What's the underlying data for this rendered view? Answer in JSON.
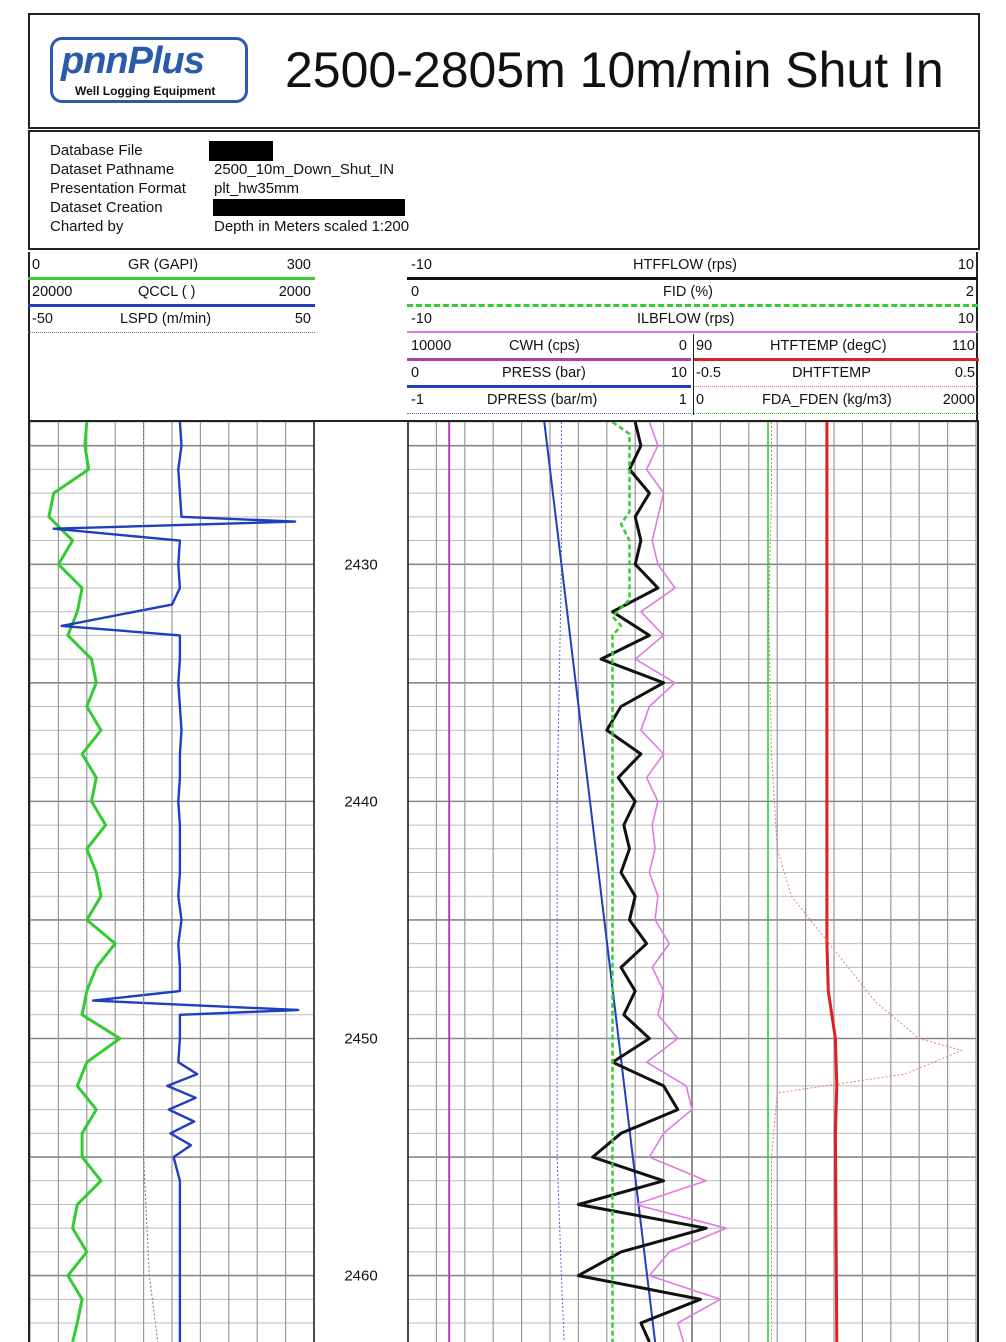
{
  "header": {
    "logo_main": "pnnPlus",
    "logo_sub": "Well Logging Equipment",
    "title": "2500-2805m 10m/min Shut In"
  },
  "info": [
    {
      "label": "Database File",
      "value": ""
    },
    {
      "label": "Dataset Pathname",
      "value": "2500_10m_Down_Shut_IN"
    },
    {
      "label": "Presentation Format",
      "value": "plt_hw35mm"
    },
    {
      "label": "Dataset Creation",
      "value": ""
    },
    {
      "label": "Charted by",
      "value": "Depth in Meters scaled 1:200"
    }
  ],
  "track1_headers": [
    {
      "min": "0",
      "name": "GR (GAPI)",
      "max": "300",
      "color": "#33cc33",
      "dash": "solid"
    },
    {
      "min": "20000",
      "name": "QCCL ( )",
      "max": "2000",
      "color": "#1f3fbf",
      "dash": "solid"
    },
    {
      "min": "-50",
      "name": "LSPD (m/min)",
      "max": "50",
      "color": "#777777",
      "dash": "dotted"
    }
  ],
  "track2_headers_full": [
    {
      "min": "-10",
      "name": "HTFFLOW (rps)",
      "max": "10",
      "color": "#111111",
      "dash": "solid"
    },
    {
      "min": "0",
      "name": "FID (%)",
      "max": "2",
      "color": "#33cc33",
      "dash": "dashed"
    },
    {
      "min": "-10",
      "name": "ILBFLOW (rps)",
      "max": "10",
      "color": "#e07ae0",
      "dash": "solid"
    }
  ],
  "track2_headers_left": [
    {
      "min": "10000",
      "name": "CWH (cps)",
      "max": "0",
      "color": "#b040b0",
      "dash": "solid"
    },
    {
      "min": "0",
      "name": "PRESS (bar)",
      "max": "10",
      "color": "#1f3fbf",
      "dash": "solid"
    },
    {
      "min": "-1",
      "name": "DPRESS (bar/m)",
      "max": "1",
      "color": "#4a6ad0",
      "dash": "dotted"
    }
  ],
  "track2_headers_right": [
    {
      "min": "90",
      "name": "HTFTEMP (degC)",
      "max": "110",
      "color": "#e02020",
      "dash": "solid"
    },
    {
      "min": "-0.5",
      "name": "DHTFTEMP",
      "max": "0.5",
      "color": "#e08080",
      "dash": "dotted"
    },
    {
      "min": "0",
      "name": "FDA_FDEN (kg/m3)",
      "max": "2000",
      "color": "#33cc33",
      "dash": "solid"
    }
  ],
  "chart_data": {
    "type": "line",
    "title": "2500-2805m 10m/min Shut In",
    "ylabel": "Depth in Meters scaled 1:200",
    "depth_range": [
      2424.0,
      2462.8
    ],
    "depth_ticks": [
      2430,
      2440,
      2450,
      2460
    ],
    "series": [
      {
        "name": "GR (GAPI)",
        "track": 1,
        "xlim": [
          0,
          300
        ],
        "color": "#33cc33",
        "depth": [
          2424,
          2425,
          2426,
          2427,
          2428,
          2429,
          2430,
          2431,
          2432,
          2433,
          2434,
          2435,
          2436,
          2437,
          2438,
          2439,
          2440,
          2441,
          2442,
          2443,
          2444,
          2445,
          2446,
          2447,
          2448,
          2449,
          2450,
          2451,
          2452,
          2453,
          2454,
          2455,
          2456,
          2457,
          2458,
          2459,
          2460,
          2461,
          2462,
          2462.8
        ],
        "values": [
          60,
          58,
          62,
          25,
          20,
          45,
          30,
          55,
          50,
          40,
          65,
          70,
          60,
          75,
          55,
          70,
          65,
          80,
          60,
          70,
          75,
          60,
          90,
          70,
          60,
          55,
          95,
          60,
          50,
          70,
          55,
          55,
          75,
          50,
          45,
          60,
          40,
          55,
          50,
          45
        ]
      },
      {
        "name": "QCCL ( )",
        "track": 1,
        "xlim": [
          20000,
          2000
        ],
        "color": "#1f3fbf",
        "depth": [
          2424,
          2425,
          2426,
          2427,
          2428,
          2428.2,
          2428.5,
          2429,
          2430,
          2431,
          2431.7,
          2432.6,
          2433,
          2434,
          2435,
          2436,
          2437,
          2438,
          2439,
          2440,
          2441,
          2442,
          2443,
          2444,
          2445,
          2445.5,
          2446,
          2447,
          2448,
          2448.4,
          2448.8,
          2449,
          2450,
          2451,
          2451.5,
          2452,
          2452.5,
          2453,
          2453.5,
          2454,
          2454.5,
          2455,
          2456,
          2457,
          2458,
          2459,
          2460,
          2461,
          2462,
          2462.8
        ],
        "values": [
          10500,
          10400,
          10600,
          10500,
          10400,
          3200,
          18500,
          10500,
          10600,
          10500,
          11000,
          18000,
          10500,
          10500,
          10600,
          10500,
          10400,
          10500,
          10500,
          10600,
          10500,
          10500,
          10500,
          10600,
          10400,
          10500,
          10600,
          10500,
          10500,
          16000,
          3000,
          10500,
          10500,
          10600,
          9400,
          11300,
          9500,
          11200,
          9600,
          11100,
          9800,
          10900,
          10500,
          10500,
          10500,
          10500,
          10500,
          10500,
          10500,
          10500
        ]
      },
      {
        "name": "LSPD (m/min)",
        "track": 1,
        "xlim": [
          -50,
          50
        ],
        "color": "#777777",
        "depth": [
          2424,
          2440,
          2455,
          2460,
          2462.8
        ],
        "values": [
          -10,
          -10,
          -10,
          -8,
          -5
        ]
      },
      {
        "name": "CWH (cps)",
        "track": 2,
        "xlim": [
          10000,
          0
        ],
        "color": "#b040b0",
        "depth": [
          2424,
          2430,
          2440,
          2450,
          2455,
          2460,
          2462.8
        ],
        "values": [
          8550,
          8550,
          8550,
          8550,
          8550,
          8550,
          8550
        ]
      },
      {
        "name": "PRESS (bar)",
        "track": 2,
        "xlim": [
          0,
          10
        ],
        "color": "#1f3fbf",
        "depth": [
          2424,
          2462.8
        ],
        "values": [
          4.8,
          8.7
        ]
      },
      {
        "name": "DPRESS (bar/m)",
        "track": 2,
        "xlim": [
          -1,
          1
        ],
        "color": "#4a6ad0",
        "depth": [
          2424,
          2430,
          2440,
          2450,
          2455,
          2460,
          2462.8
        ],
        "values": [
          0.08,
          0.08,
          0.05,
          0.05,
          0.05,
          0.08,
          0.1
        ]
      },
      {
        "name": "HTFFLOW (rps)",
        "track": 2,
        "xlim": [
          -10,
          10
        ],
        "color": "#111111",
        "depth": [
          2424,
          2425,
          2426,
          2427,
          2428,
          2429,
          2430,
          2431,
          2432,
          2433,
          2434,
          2435,
          2436,
          2437,
          2438,
          2439,
          2440,
          2441,
          2442,
          2443,
          2444,
          2445,
          2446,
          2447,
          2448,
          2449,
          2450,
          2451,
          2452,
          2453,
          2454,
          2455,
          2456,
          2457,
          2458,
          2459,
          2460,
          2461,
          2462,
          2462.8
        ],
        "values": [
          -2,
          -1.8,
          -2.2,
          -1.5,
          -2,
          -1.8,
          -2,
          -1.2,
          -2.8,
          -1.5,
          -3.2,
          -1,
          -2.5,
          -3,
          -1.8,
          -2.6,
          -2,
          -2.4,
          -2.2,
          -2.5,
          -2,
          -2.2,
          -1.6,
          -2.5,
          -2,
          -2.4,
          -1.5,
          -2.8,
          -1,
          -0.5,
          -2.5,
          -3.5,
          -1,
          -4,
          0.5,
          -2.5,
          -4,
          0.3,
          -1.8,
          -1.5
        ]
      },
      {
        "name": "FID (%)",
        "track": 2,
        "xlim": [
          0,
          2
        ],
        "color": "#33cc33",
        "depth": [
          2424,
          2424.5,
          2425,
          2427.8,
          2428.3,
          2429,
          2430.5,
          2431.5,
          2432.2,
          2432.6,
          2433,
          2440,
          2450,
          2460,
          2462.8
        ],
        "values": [
          0.72,
          0.78,
          0.78,
          0.78,
          0.75,
          0.78,
          0.78,
          0.78,
          0.72,
          0.75,
          0.72,
          0.72,
          0.72,
          0.72,
          0.72
        ]
      },
      {
        "name": "ILBFLOW (rps)",
        "track": 2,
        "xlim": [
          -10,
          10
        ],
        "color": "#e07ae0",
        "depth": [
          2424,
          2425,
          2426,
          2427,
          2428,
          2429,
          2430,
          2431,
          2432,
          2433,
          2434,
          2435,
          2436,
          2437,
          2438,
          2439,
          2440,
          2441,
          2442,
          2443,
          2444,
          2445,
          2446,
          2447,
          2448,
          2449,
          2450,
          2451,
          2452,
          2453,
          2454,
          2455,
          2456,
          2457,
          2458,
          2459,
          2460,
          2461,
          2462,
          2462.8
        ],
        "values": [
          -1.5,
          -1.2,
          -1.6,
          -1,
          -1.2,
          -1.4,
          -1.2,
          -0.6,
          -1.8,
          -1,
          -2,
          -0.6,
          -1.5,
          -1.8,
          -1,
          -1.6,
          -1.2,
          -1.4,
          -1.3,
          -1.5,
          -1.2,
          -1.3,
          -0.8,
          -1.4,
          -1,
          -1.2,
          -0.5,
          -1.6,
          -0.2,
          0,
          -1,
          -1.5,
          0.5,
          -2,
          1.2,
          -0.8,
          -1.5,
          1,
          -0.5,
          -0.3
        ]
      },
      {
        "name": "HTFTEMP (degC)",
        "track": 2,
        "xlim": [
          90,
          110
        ],
        "color": "#e02020",
        "depth": [
          2424,
          2430,
          2440,
          2446,
          2448,
          2450,
          2452,
          2454,
          2462.8
        ],
        "values": [
          99.5,
          99.5,
          99.5,
          99.5,
          99.6,
          100.1,
          100.2,
          100.1,
          100.2
        ]
      },
      {
        "name": "DHTFTEMP",
        "track": 2,
        "xlim": [
          -0.5,
          0.5
        ],
        "color": "#e08080",
        "depth": [
          2424,
          2427,
          2432,
          2438,
          2442,
          2444,
          2445.5,
          2447,
          2448.5,
          2450,
          2450.5,
          2451.5,
          2452.3,
          2455,
          2460,
          2462.8
        ],
        "values": [
          -0.22,
          -0.22,
          -0.23,
          -0.22,
          -0.2,
          -0.15,
          -0.05,
          0.05,
          0.15,
          0.3,
          0.45,
          0.25,
          -0.2,
          -0.22,
          -0.22,
          -0.22
        ]
      },
      {
        "name": "FDA_FDEN (kg/m3)",
        "track": 2,
        "xlim": [
          0,
          2000
        ],
        "color": "#33cc33",
        "depth": [
          2424,
          2427,
          2427.2,
          2440,
          2450,
          2460,
          2462.8
        ],
        "values": [
          535,
          535,
          535,
          535,
          535,
          535,
          535
        ]
      }
    ]
  }
}
